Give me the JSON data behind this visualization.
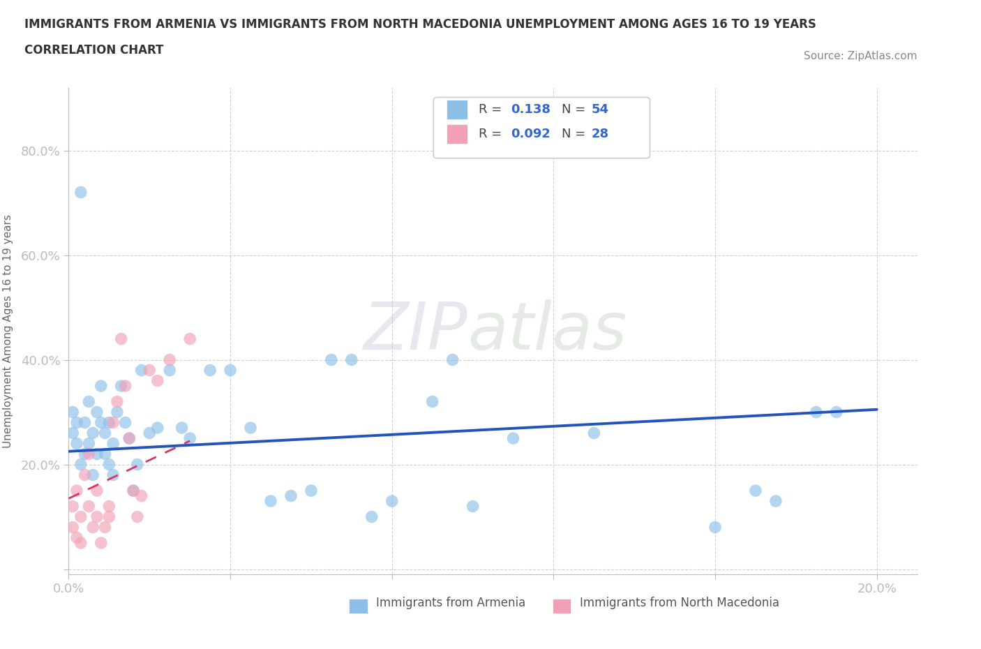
{
  "title_line1": "IMMIGRANTS FROM ARMENIA VS IMMIGRANTS FROM NORTH MACEDONIA UNEMPLOYMENT AMONG AGES 16 TO 19 YEARS",
  "title_line2": "CORRELATION CHART",
  "source": "Source: ZipAtlas.com",
  "ylabel": "Unemployment Among Ages 16 to 19 years",
  "xlim": [
    0.0,
    0.21
  ],
  "ylim": [
    -0.01,
    0.92
  ],
  "ytick_vals": [
    0.0,
    0.2,
    0.4,
    0.6,
    0.8
  ],
  "ytick_labels": [
    "",
    "20.0%",
    "40.0%",
    "60.0%",
    "80.0%"
  ],
  "xtick_vals": [
    0.0,
    0.04,
    0.08,
    0.12,
    0.16,
    0.2
  ],
  "xtick_labels": [
    "0.0%",
    "",
    "",
    "",
    "",
    "20.0%"
  ],
  "color_armenia": "#8BBFE8",
  "color_macedonia": "#F2A0B5",
  "watermark_zip": "ZIP",
  "watermark_atlas": "atlas",
  "background_color": "#FFFFFF",
  "grid_color": "#CCCCCC",
  "tick_label_color": "#5599DD",
  "title_color": "#333333",
  "armenia_x": [
    0.001,
    0.001,
    0.002,
    0.002,
    0.003,
    0.003,
    0.004,
    0.004,
    0.005,
    0.005,
    0.006,
    0.006,
    0.007,
    0.007,
    0.008,
    0.008,
    0.009,
    0.009,
    0.01,
    0.01,
    0.011,
    0.011,
    0.012,
    0.013,
    0.014,
    0.015,
    0.016,
    0.017,
    0.018,
    0.02,
    0.022,
    0.025,
    0.028,
    0.03,
    0.035,
    0.04,
    0.045,
    0.05,
    0.055,
    0.06,
    0.065,
    0.07,
    0.075,
    0.08,
    0.09,
    0.095,
    0.1,
    0.11,
    0.13,
    0.16,
    0.17,
    0.175,
    0.185,
    0.19
  ],
  "armenia_y": [
    0.26,
    0.3,
    0.24,
    0.28,
    0.2,
    0.72,
    0.22,
    0.28,
    0.24,
    0.32,
    0.18,
    0.26,
    0.22,
    0.3,
    0.28,
    0.35,
    0.22,
    0.26,
    0.2,
    0.28,
    0.18,
    0.24,
    0.3,
    0.35,
    0.28,
    0.25,
    0.15,
    0.2,
    0.38,
    0.26,
    0.27,
    0.38,
    0.27,
    0.25,
    0.38,
    0.38,
    0.27,
    0.13,
    0.14,
    0.15,
    0.4,
    0.4,
    0.1,
    0.13,
    0.32,
    0.4,
    0.12,
    0.25,
    0.26,
    0.08,
    0.15,
    0.13,
    0.3,
    0.3
  ],
  "macedonia_x": [
    0.001,
    0.001,
    0.002,
    0.002,
    0.003,
    0.003,
    0.004,
    0.005,
    0.005,
    0.006,
    0.007,
    0.007,
    0.008,
    0.009,
    0.01,
    0.01,
    0.011,
    0.012,
    0.013,
    0.014,
    0.015,
    0.016,
    0.017,
    0.018,
    0.02,
    0.022,
    0.025,
    0.03
  ],
  "macedonia_y": [
    0.12,
    0.08,
    0.15,
    0.06,
    0.1,
    0.05,
    0.18,
    0.12,
    0.22,
    0.08,
    0.15,
    0.1,
    0.05,
    0.08,
    0.12,
    0.1,
    0.28,
    0.32,
    0.44,
    0.35,
    0.25,
    0.15,
    0.1,
    0.14,
    0.38,
    0.36,
    0.4,
    0.44
  ],
  "trend_arm_x0": 0.0,
  "trend_arm_x1": 0.2,
  "trend_arm_y0": 0.225,
  "trend_arm_y1": 0.305,
  "trend_mac_x0": 0.0,
  "trend_mac_x1": 0.03,
  "trend_mac_y0": 0.135,
  "trend_mac_y1": 0.245
}
